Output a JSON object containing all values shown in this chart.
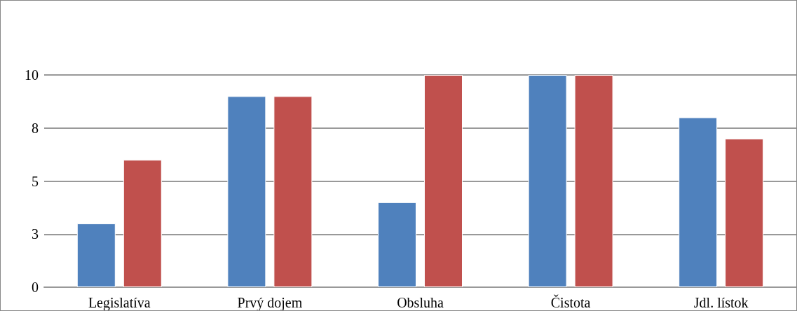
{
  "chart_data": {
    "type": "bar",
    "categories": [
      "Legislatíva",
      "Prvý dojem",
      "Obsluha",
      "Čistota",
      "Jdl. lístok"
    ],
    "series": [
      {
        "color": "#4f81bd",
        "values": [
          3,
          9,
          4,
          10,
          8
        ]
      },
      {
        "color": "#c0504d",
        "values": [
          6,
          9,
          10,
          10,
          7
        ]
      }
    ],
    "ylim": [
      0,
      10
    ],
    "yticks": [
      0,
      {
        "value": 2.5,
        "label": "3"
      },
      5,
      {
        "value": 7.5,
        "label": "8"
      },
      10
    ],
    "grid": "y"
  }
}
